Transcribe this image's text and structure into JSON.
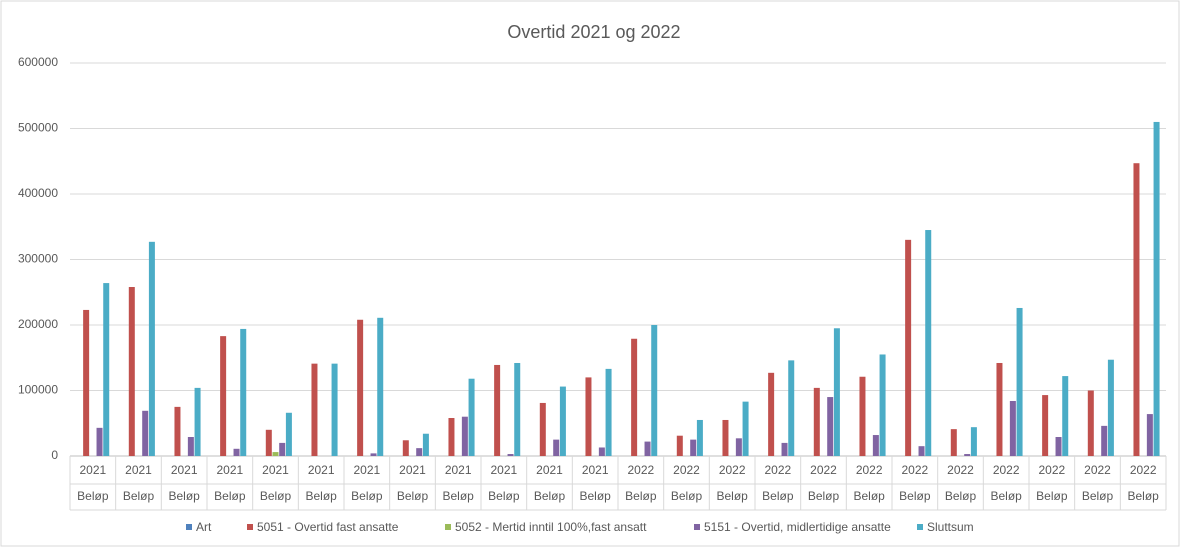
{
  "chart_data": {
    "type": "bar",
    "title": "Overtid 2021 og 2022",
    "categories": [
      "2021",
      "2021",
      "2021",
      "2021",
      "2021",
      "2021",
      "2021",
      "2021",
      "2021",
      "2021",
      "2021",
      "2021",
      "2022",
      "2022",
      "2022",
      "2022",
      "2022",
      "2022",
      "2022",
      "2022",
      "2022",
      "2022",
      "2022",
      "2022"
    ],
    "subcategories": [
      "Beløp",
      "Beløp",
      "Beløp",
      "Beløp",
      "Beløp",
      "Beløp",
      "Beløp",
      "Beløp",
      "Beløp",
      "Beløp",
      "Beløp",
      "Beløp",
      "Beløp",
      "Beløp",
      "Beløp",
      "Beløp",
      "Beløp",
      "Beløp",
      "Beløp",
      "Beløp",
      "Beløp",
      "Beløp",
      "Beløp",
      "Beløp"
    ],
    "series": [
      {
        "name": "Art",
        "color": "#4f81bd",
        "values": [
          0,
          0,
          0,
          0,
          0,
          0,
          0,
          0,
          0,
          0,
          0,
          0,
          0,
          0,
          0,
          0,
          0,
          0,
          0,
          0,
          0,
          0,
          0,
          0
        ]
      },
      {
        "name": "5051 - Overtid fast ansatte",
        "color": "#c0504d",
        "values": [
          223000,
          258000,
          75000,
          183000,
          40000,
          141000,
          208000,
          24000,
          58000,
          139000,
          81000,
          120000,
          179000,
          31000,
          55000,
          127000,
          104000,
          121000,
          330000,
          41000,
          142000,
          93000,
          100000,
          447000
        ]
      },
      {
        "name": "5052 - Mertid inntil 100%,fast ansatt",
        "color": "#9bbb59",
        "values": [
          0,
          0,
          0,
          0,
          6000,
          0,
          0,
          0,
          0,
          0,
          0,
          0,
          0,
          0,
          0,
          0,
          0,
          0,
          0,
          0,
          0,
          0,
          0,
          0
        ]
      },
      {
        "name": "5151 - Overtid, midlertidige ansatte",
        "color": "#8064a2",
        "values": [
          43000,
          69000,
          29000,
          11000,
          20000,
          0,
          4000,
          12000,
          60000,
          3000,
          25000,
          13000,
          22000,
          25000,
          27000,
          20000,
          90000,
          32000,
          15000,
          3000,
          84000,
          29000,
          46000,
          64000
        ]
      },
      {
        "name": "Sluttsum",
        "color": "#4bacc6",
        "values": [
          264000,
          327000,
          104000,
          194000,
          66000,
          141000,
          211000,
          34000,
          118000,
          142000,
          106000,
          133000,
          200000,
          55000,
          83000,
          146000,
          195000,
          155000,
          345000,
          44000,
          226000,
          122000,
          147000,
          510000
        ]
      }
    ],
    "ylim": [
      0,
      600000
    ],
    "yticks": [
      0,
      100000,
      200000,
      300000,
      400000,
      500000,
      600000
    ],
    "grid": true,
    "legend": "bottom"
  }
}
